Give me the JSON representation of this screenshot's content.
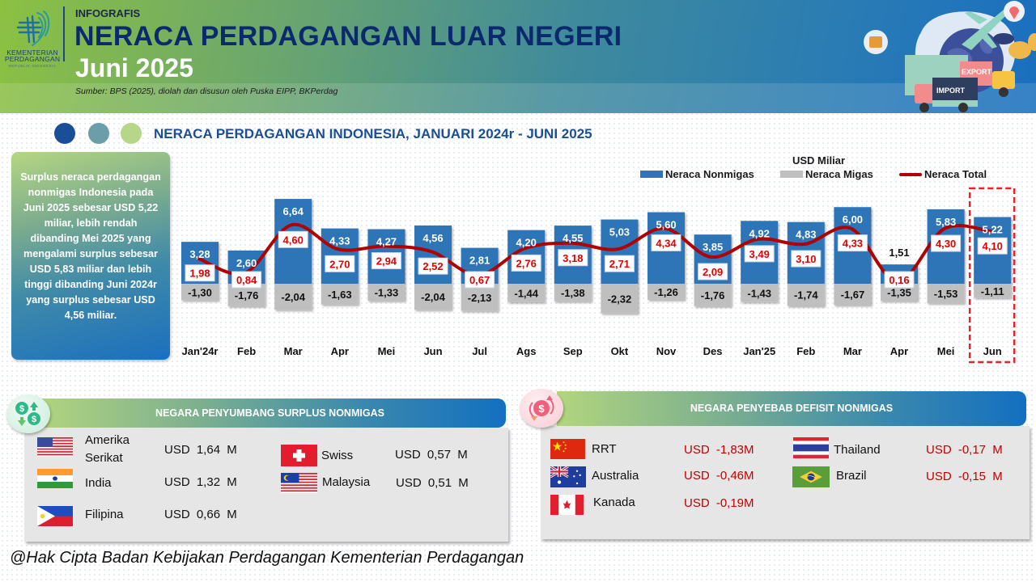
{
  "header": {
    "logo_line1": "KEMENTERIAN",
    "logo_line2": "PERDAGANGAN",
    "logo_line3": "REPUBLIK INDONESIA",
    "kicker": "INFOGRAFIS",
    "title": "NERACA PERDAGANGAN LUAR NEGERI",
    "subtitle": "Juni 2025",
    "source": "Sumber: BPS (2025), diolah dan disusun oleh Puska EIPP, BKPerdag",
    "hero_labels": {
      "export": "EXPORT",
      "import": "IMPORT"
    }
  },
  "section": {
    "title": "NERACA PERDAGANGAN INDONESIA, JANUARI 2024r - JUNI 2025",
    "dot_colors": [
      "#1a4e96",
      "#6b9ea8",
      "#b6d68a"
    ]
  },
  "info_box": {
    "text": "Surplus neraca perdagangan nonmigas Indonesia pada Juni 2025 sebesar USD 5,22 miliar, lebih rendah dibanding Mei 2025 yang mengalami surplus sebesar USD 5,83 miliar dan  lebih tinggi dibanding Juni 2024r yang surplus sebesar USD 4,56 miliar."
  },
  "legend": {
    "unit": "USD Miliar",
    "items": [
      {
        "label": "Neraca Nonmigas",
        "color": "#2f74b8",
        "kind": "bar"
      },
      {
        "label": "Neraca Migas",
        "color": "#bfbfbf",
        "kind": "bar"
      },
      {
        "label": "Neraca Total",
        "color": "#b00000",
        "kind": "line"
      }
    ]
  },
  "chart_data": {
    "type": "bar",
    "title": "NERACA PERDAGANGAN INDONESIA, JANUARI 2024r - JUNI 2025",
    "ylabel": "USD Miliar",
    "xlabel": "",
    "categories": [
      "Jan'24r",
      "Feb",
      "Mar",
      "Apr",
      "Mei",
      "Jun",
      "Jul",
      "Ags",
      "Sep",
      "Okt",
      "Nov",
      "Des",
      "Jan'25",
      "Feb",
      "Mar",
      "Apr",
      "Mei",
      "Jun"
    ],
    "series": [
      {
        "name": "Neraca Nonmigas",
        "type": "bar",
        "color": "#2f74b8",
        "values": [
          3.28,
          2.6,
          6.64,
          4.33,
          4.27,
          4.56,
          2.81,
          4.2,
          4.55,
          5.03,
          5.6,
          3.85,
          4.92,
          4.83,
          6.0,
          1.51,
          5.83,
          5.22
        ]
      },
      {
        "name": "Neraca Migas",
        "type": "bar",
        "color": "#bfbfbf",
        "values": [
          -1.3,
          -1.76,
          -2.04,
          -1.63,
          -1.33,
          -2.04,
          -2.13,
          -1.44,
          -1.38,
          -2.32,
          -1.26,
          -1.76,
          -1.43,
          -1.74,
          -1.67,
          -1.35,
          -1.53,
          -1.11
        ]
      },
      {
        "name": "Neraca Total",
        "type": "line",
        "color": "#b00000",
        "values": [
          1.98,
          0.84,
          4.6,
          2.7,
          2.94,
          2.52,
          0.67,
          2.76,
          3.18,
          2.71,
          4.34,
          2.09,
          3.49,
          3.1,
          4.33,
          0.16,
          4.3,
          4.1
        ]
      }
    ],
    "ylim": [
      -2.5,
      7
    ],
    "grid": false,
    "legend_position": "top-right",
    "highlight_category_index": 17,
    "decimal_separator": ","
  },
  "surplus_panel": {
    "title": "NEGARA PENYUMBANG SURPLUS NONMIGAS",
    "icon": "money-exchange-icon",
    "countries": [
      {
        "flag": "us",
        "name_line1": "Amerika",
        "name_line2": "Serikat",
        "value": "USD 1,64 M"
      },
      {
        "flag": "in",
        "name_line1": "India",
        "name_line2": "",
        "value": "USD  1,32 M"
      },
      {
        "flag": "ph",
        "name_line1": "Filipina",
        "name_line2": "",
        "value": "USD  0,66 M"
      },
      {
        "flag": "ch",
        "name_line1": "Swiss",
        "name_line2": "",
        "value": "USD  0,57 M"
      },
      {
        "flag": "my",
        "name_line1": "Malaysia",
        "name_line2": "",
        "value": "USD  0,51 M"
      }
    ]
  },
  "deficit_panel": {
    "title": "NEGARA PENYEBAB DEFISIT NONMIGAS",
    "icon": "money-cycle-icon",
    "countries": [
      {
        "flag": "cn",
        "name": "RRT",
        "value": "USD   -1,83M"
      },
      {
        "flag": "au",
        "name": "Australia",
        "value": "USD   -0,46M"
      },
      {
        "flag": "ca",
        "name": "Kanada",
        "value": "USD   -0,19M"
      },
      {
        "flag": "th",
        "name": "Thailand",
        "value": "USD  -0,17 M"
      },
      {
        "flag": "br",
        "name": "Brazil",
        "value": "USD  -0,15 M"
      }
    ]
  },
  "footer": {
    "text": "@Hak Cipta Badan Kebijakan Perdagangan Kementerian Perdagangan"
  }
}
